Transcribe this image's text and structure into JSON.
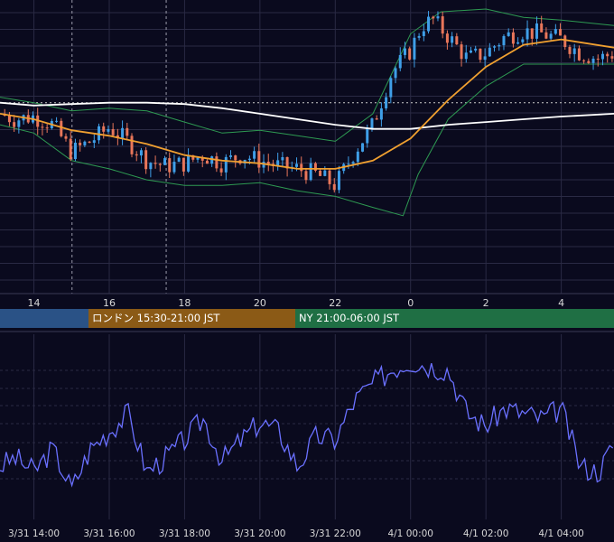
{
  "colors": {
    "background": "#0a0a1e",
    "candle_up": "#3f9fe8",
    "candle_down": "#e8765a",
    "ma_short": "#f0a030",
    "ma_long": "#ffffff",
    "bollinger": "#2e9a52",
    "oscillator": "#6a70ff",
    "grid": "#2a2a44"
  },
  "sessions": [
    {
      "id": "tokyo",
      "label": "",
      "color": "#2a5286"
    },
    {
      "id": "london",
      "label": "ロンドン 15:30-21:00 JST",
      "color": "#8b5a16"
    },
    {
      "id": "ny",
      "label": "NY 21:00-06:00 JST",
      "color": "#1f6f44"
    }
  ],
  "chart_data": [
    {
      "type": "candlestick",
      "title": "",
      "xlabel": "",
      "ylabel": "",
      "x_ticks": [
        "14",
        "16",
        "18",
        "20",
        "22",
        "0",
        "2",
        "4"
      ],
      "x_range_hours": [
        13.1,
        29.4
      ],
      "y_range": [
        0,
        100
      ],
      "grid": true,
      "vertical_markers_hour": [
        13.0,
        15.0,
        17.5
      ],
      "overlays": [
        "bollinger_bands",
        "moving_average_orange",
        "moving_average_white"
      ],
      "price_series": [
        {
          "hour": 13.1,
          "value": 62
        },
        {
          "hour": 13.5,
          "value": 60
        },
        {
          "hour": 14.0,
          "value": 61
        },
        {
          "hour": 14.5,
          "value": 58
        },
        {
          "hour": 15.0,
          "value": 48
        },
        {
          "hour": 15.5,
          "value": 52
        },
        {
          "hour": 16.0,
          "value": 57
        },
        {
          "hour": 16.5,
          "value": 52
        },
        {
          "hour": 17.0,
          "value": 45
        },
        {
          "hour": 17.5,
          "value": 43
        },
        {
          "hour": 18.0,
          "value": 44
        },
        {
          "hour": 18.5,
          "value": 47
        },
        {
          "hour": 19.0,
          "value": 44
        },
        {
          "hour": 19.5,
          "value": 47
        },
        {
          "hour": 20.0,
          "value": 45
        },
        {
          "hour": 20.5,
          "value": 43
        },
        {
          "hour": 21.0,
          "value": 42
        },
        {
          "hour": 21.5,
          "value": 40
        },
        {
          "hour": 22.0,
          "value": 36
        },
        {
          "hour": 22.5,
          "value": 48
        },
        {
          "hour": 23.0,
          "value": 58
        },
        {
          "hour": 23.5,
          "value": 77
        },
        {
          "hour": 24.0,
          "value": 85
        },
        {
          "hour": 24.3,
          "value": 94
        },
        {
          "hour": 24.6,
          "value": 96
        },
        {
          "hour": 25.0,
          "value": 90
        },
        {
          "hour": 25.5,
          "value": 82
        },
        {
          "hour": 26.0,
          "value": 84
        },
        {
          "hour": 26.5,
          "value": 90
        },
        {
          "hour": 27.0,
          "value": 92
        },
        {
          "hour": 27.5,
          "value": 91
        },
        {
          "hour": 28.0,
          "value": 89
        },
        {
          "hour": 28.5,
          "value": 84
        },
        {
          "hour": 29.0,
          "value": 82
        },
        {
          "hour": 29.4,
          "value": 84
        }
      ],
      "ma_short": [
        {
          "hour": 13.1,
          "value": 62
        },
        {
          "hour": 14.0,
          "value": 60
        },
        {
          "hour": 15.0,
          "value": 56
        },
        {
          "hour": 16.0,
          "value": 54
        },
        {
          "hour": 17.0,
          "value": 51
        },
        {
          "hour": 18.0,
          "value": 47
        },
        {
          "hour": 19.0,
          "value": 45
        },
        {
          "hour": 20.0,
          "value": 44
        },
        {
          "hour": 21.0,
          "value": 42
        },
        {
          "hour": 22.0,
          "value": 42
        },
        {
          "hour": 23.0,
          "value": 45
        },
        {
          "hour": 24.0,
          "value": 53
        },
        {
          "hour": 25.0,
          "value": 67
        },
        {
          "hour": 26.0,
          "value": 79
        },
        {
          "hour": 27.0,
          "value": 87
        },
        {
          "hour": 28.0,
          "value": 89
        },
        {
          "hour": 29.4,
          "value": 86
        }
      ],
      "ma_long": [
        {
          "hour": 13.1,
          "value": 66
        },
        {
          "hour": 14.0,
          "value": 65
        },
        {
          "hour": 15.0,
          "value": 65.5
        },
        {
          "hour": 16.0,
          "value": 66
        },
        {
          "hour": 17.0,
          "value": 66
        },
        {
          "hour": 18.0,
          "value": 65.5
        },
        {
          "hour": 19.0,
          "value": 64
        },
        {
          "hour": 20.0,
          "value": 62
        },
        {
          "hour": 21.0,
          "value": 60
        },
        {
          "hour": 22.0,
          "value": 58
        },
        {
          "hour": 23.0,
          "value": 56.5
        },
        {
          "hour": 24.0,
          "value": 56.5
        },
        {
          "hour": 25.0,
          "value": 58
        },
        {
          "hour": 26.0,
          "value": 59
        },
        {
          "hour": 27.0,
          "value": 60
        },
        {
          "hour": 28.0,
          "value": 61
        },
        {
          "hour": 29.4,
          "value": 62
        }
      ],
      "bollinger_upper": [
        {
          "hour": 13.1,
          "value": 68
        },
        {
          "hour": 14.0,
          "value": 66
        },
        {
          "hour": 15.0,
          "value": 63
        },
        {
          "hour": 16.0,
          "value": 64
        },
        {
          "hour": 17.0,
          "value": 63
        },
        {
          "hour": 18.0,
          "value": 59
        },
        {
          "hour": 19.0,
          "value": 55
        },
        {
          "hour": 20.0,
          "value": 56
        },
        {
          "hour": 21.0,
          "value": 54
        },
        {
          "hour": 22.0,
          "value": 52
        },
        {
          "hour": 23.0,
          "value": 62
        },
        {
          "hour": 24.0,
          "value": 91
        },
        {
          "hour": 24.8,
          "value": 99
        },
        {
          "hour": 26.0,
          "value": 100
        },
        {
          "hour": 27.0,
          "value": 97
        },
        {
          "hour": 28.0,
          "value": 96
        },
        {
          "hour": 29.4,
          "value": 94
        }
      ],
      "bollinger_lower": [
        {
          "hour": 13.1,
          "value": 58
        },
        {
          "hour": 14.0,
          "value": 55
        },
        {
          "hour": 15.0,
          "value": 45
        },
        {
          "hour": 16.0,
          "value": 42
        },
        {
          "hour": 17.0,
          "value": 38
        },
        {
          "hour": 18.0,
          "value": 36
        },
        {
          "hour": 19.0,
          "value": 36
        },
        {
          "hour": 20.0,
          "value": 37
        },
        {
          "hour": 21.0,
          "value": 34
        },
        {
          "hour": 22.0,
          "value": 32
        },
        {
          "hour": 23.0,
          "value": 28
        },
        {
          "hour": 23.8,
          "value": 25
        },
        {
          "hour": 24.2,
          "value": 40
        },
        {
          "hour": 25.0,
          "value": 60
        },
        {
          "hour": 26.0,
          "value": 72
        },
        {
          "hour": 27.0,
          "value": 80
        },
        {
          "hour": 29.4,
          "value": 80
        }
      ]
    },
    {
      "type": "line",
      "title": "",
      "xlabel": "",
      "ylabel": "",
      "x_ticks": [
        "3/31 14:00",
        "3/31 16:00",
        "3/31 18:00",
        "3/31 20:00",
        "3/31 22:00",
        "4/1 00:00",
        "4/1 02:00",
        "4/1 04:00"
      ],
      "x_range_hours": [
        13.1,
        29.4
      ],
      "y_range": [
        0,
        100
      ],
      "grid": true,
      "series": [
        {
          "points": [
            {
              "hour": 13.1,
              "value": 25
            },
            {
              "hour": 13.5,
              "value": 30
            },
            {
              "hour": 14.0,
              "value": 22
            },
            {
              "hour": 14.5,
              "value": 35
            },
            {
              "hour": 15.0,
              "value": 12
            },
            {
              "hour": 15.5,
              "value": 35
            },
            {
              "hour": 16.0,
              "value": 45
            },
            {
              "hour": 16.5,
              "value": 55
            },
            {
              "hour": 17.0,
              "value": 22
            },
            {
              "hour": 17.5,
              "value": 30
            },
            {
              "hour": 18.0,
              "value": 40
            },
            {
              "hour": 18.5,
              "value": 52
            },
            {
              "hour": 19.0,
              "value": 28
            },
            {
              "hour": 19.5,
              "value": 40
            },
            {
              "hour": 20.0,
              "value": 50
            },
            {
              "hour": 20.5,
              "value": 45
            },
            {
              "hour": 21.0,
              "value": 25
            },
            {
              "hour": 21.5,
              "value": 42
            },
            {
              "hour": 22.0,
              "value": 40
            },
            {
              "hour": 22.5,
              "value": 62
            },
            {
              "hour": 23.0,
              "value": 72
            },
            {
              "hour": 23.5,
              "value": 80
            },
            {
              "hour": 24.0,
              "value": 85
            },
            {
              "hour": 24.5,
              "value": 82
            },
            {
              "hour": 25.0,
              "value": 80
            },
            {
              "hour": 25.5,
              "value": 55
            },
            {
              "hour": 26.0,
              "value": 48
            },
            {
              "hour": 26.5,
              "value": 58
            },
            {
              "hour": 27.0,
              "value": 55
            },
            {
              "hour": 27.5,
              "value": 52
            },
            {
              "hour": 28.0,
              "value": 58
            },
            {
              "hour": 28.5,
              "value": 25
            },
            {
              "hour": 29.0,
              "value": 22
            },
            {
              "hour": 29.4,
              "value": 38
            }
          ]
        }
      ]
    }
  ]
}
